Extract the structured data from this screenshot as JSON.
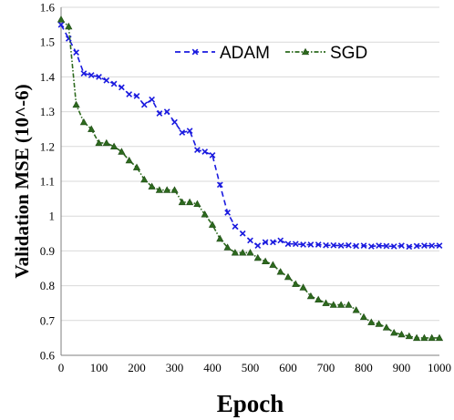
{
  "chart_data": {
    "type": "line",
    "title": "",
    "xlabel": "Epoch",
    "ylabel": "Validation MSE (10^-6)",
    "xlim": [
      0,
      1000
    ],
    "ylim": [
      0.6,
      1.6
    ],
    "xticks": [
      0,
      100,
      200,
      300,
      400,
      500,
      600,
      700,
      800,
      900,
      1000
    ],
    "yticks": [
      0.6,
      0.7,
      0.8,
      0.9,
      1,
      1.1,
      1.2,
      1.3,
      1.4,
      1.5,
      1.6
    ],
    "grid": "horizontal",
    "legend_position": "top-right",
    "series": [
      {
        "name": "ADAM",
        "color": "#1a1adf",
        "line_style": "dashed",
        "marker": "x",
        "x": [
          0,
          20,
          40,
          60,
          80,
          100,
          120,
          140,
          160,
          180,
          200,
          220,
          240,
          260,
          280,
          300,
          320,
          340,
          360,
          380,
          400,
          420,
          440,
          460,
          480,
          500,
          520,
          540,
          560,
          580,
          600,
          620,
          640,
          660,
          680,
          700,
          720,
          740,
          760,
          780,
          800,
          820,
          840,
          860,
          880,
          900,
          920,
          940,
          960,
          980,
          1000
        ],
        "y": [
          1.55,
          1.51,
          1.47,
          1.41,
          1.405,
          1.4,
          1.39,
          1.38,
          1.37,
          1.35,
          1.345,
          1.32,
          1.335,
          1.295,
          1.3,
          1.27,
          1.24,
          1.245,
          1.19,
          1.185,
          1.175,
          1.09,
          1.01,
          0.97,
          0.95,
          0.93,
          0.915,
          0.925,
          0.925,
          0.93,
          0.92,
          0.92,
          0.918,
          0.918,
          0.918,
          0.916,
          0.916,
          0.915,
          0.916,
          0.914,
          0.915,
          0.913,
          0.915,
          0.914,
          0.913,
          0.915,
          0.912,
          0.914,
          0.915,
          0.915,
          0.915
        ]
      },
      {
        "name": "SGD",
        "color": "#2d6a1e",
        "line_style": "dash-dot",
        "marker": "triangle",
        "x": [
          0,
          20,
          40,
          60,
          80,
          100,
          120,
          140,
          160,
          180,
          200,
          220,
          240,
          260,
          280,
          300,
          320,
          340,
          360,
          380,
          400,
          420,
          440,
          460,
          480,
          500,
          520,
          540,
          560,
          580,
          600,
          620,
          640,
          660,
          680,
          700,
          720,
          740,
          760,
          780,
          800,
          820,
          840,
          860,
          880,
          900,
          920,
          940,
          960,
          980,
          1000
        ],
        "y": [
          1.565,
          1.545,
          1.32,
          1.27,
          1.25,
          1.21,
          1.21,
          1.2,
          1.185,
          1.16,
          1.14,
          1.105,
          1.085,
          1.075,
          1.075,
          1.075,
          1.04,
          1.04,
          1.035,
          1.005,
          0.975,
          0.935,
          0.91,
          0.895,
          0.895,
          0.895,
          0.88,
          0.87,
          0.86,
          0.84,
          0.825,
          0.805,
          0.795,
          0.77,
          0.76,
          0.75,
          0.745,
          0.745,
          0.745,
          0.73,
          0.71,
          0.695,
          0.69,
          0.68,
          0.665,
          0.66,
          0.655,
          0.65,
          0.65,
          0.65,
          0.65
        ]
      }
    ]
  }
}
